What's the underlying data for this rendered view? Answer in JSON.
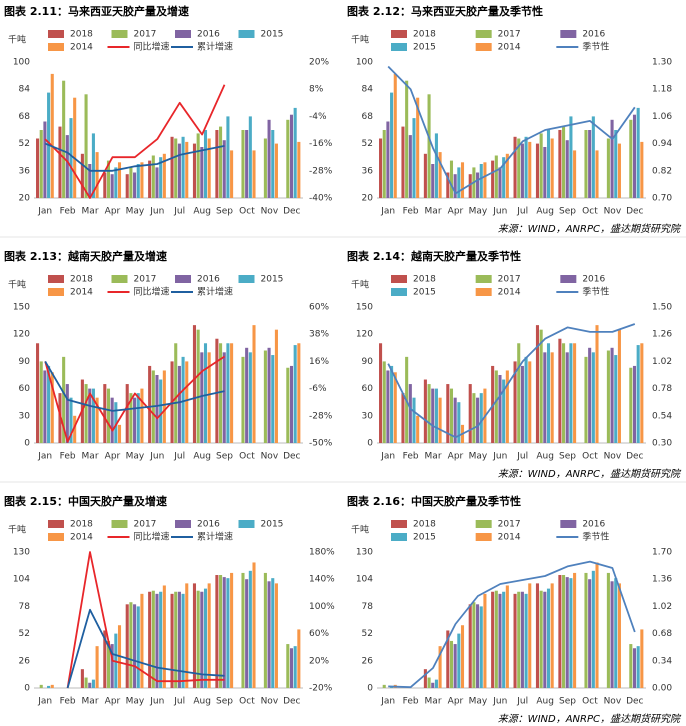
{
  "chart_data": [
    {
      "type": "bar",
      "title": "图表 2.11：马来西亚天胶产量及增速",
      "y_label": "千吨",
      "grid": false,
      "categories": [
        "Jan",
        "Feb",
        "Mar",
        "Apr",
        "May",
        "Jun",
        "Jul",
        "Aug",
        "Sep",
        "Oct",
        "Nov",
        "Dec"
      ],
      "ylim": [
        20,
        100
      ],
      "yticks": [
        20,
        36,
        52,
        68,
        84,
        100
      ],
      "y2lim": [
        -40,
        20
      ],
      "y2ticks": [
        {
          "value": -40,
          "label": "-40%"
        },
        {
          "value": -28,
          "label": "-28%"
        },
        {
          "value": -16,
          "label": "-16%"
        },
        {
          "value": -4,
          "label": "-4%"
        },
        {
          "value": 8,
          "label": "8%"
        },
        {
          "value": 20,
          "label": "20%"
        }
      ],
      "series": [
        {
          "name": "2018",
          "color": "#c0504d",
          "values": [
            55,
            62,
            46,
            35,
            34,
            42,
            56,
            52,
            60,
            null,
            null,
            null
          ]
        },
        {
          "name": "2017",
          "color": "#9bbb59",
          "values": [
            60,
            89,
            81,
            42,
            38,
            45,
            55,
            58,
            62,
            60,
            55,
            66
          ]
        },
        {
          "name": "2016",
          "color": "#8064a2",
          "values": [
            65,
            57,
            40,
            34,
            35,
            38,
            52,
            50,
            54,
            60,
            66,
            69
          ]
        },
        {
          "name": "2015",
          "color": "#4bacc6",
          "values": [
            82,
            67,
            58,
            38,
            40,
            44,
            56,
            60,
            68,
            68,
            60,
            73
          ]
        },
        {
          "name": "2014",
          "color": "#f79646",
          "values": [
            93,
            79,
            47,
            41,
            41,
            46,
            53,
            55,
            48,
            48,
            52,
            53
          ]
        },
        {
          "name": "同比增速",
          "color": "#e8262a",
          "type": "line",
          "axis": "y2",
          "values": [
            -14,
            -24,
            -40,
            -22,
            -22,
            -14,
            2,
            -12,
            10,
            null,
            null,
            null
          ]
        },
        {
          "name": "累计增速",
          "color": "#1f5fa0",
          "type": "line",
          "axis": "y2",
          "values": [
            -16,
            -20,
            -28,
            -28,
            -26,
            -25,
            -21,
            -19,
            -17,
            null,
            null,
            null
          ]
        }
      ]
    },
    {
      "type": "bar",
      "title": "图表 2.12：马来西亚天胶产量及季节性",
      "y_label": "千吨",
      "grid": false,
      "categories": [
        "Jan",
        "Feb",
        "Mar",
        "Apr",
        "May",
        "Jun",
        "Jul",
        "Aug",
        "Sep",
        "Oct",
        "Nov",
        "Dec"
      ],
      "ylim": [
        20,
        100
      ],
      "yticks": [
        20,
        36,
        52,
        68,
        84,
        100
      ],
      "y2lim": [
        0.7,
        1.3
      ],
      "y2ticks": [
        {
          "value": 0.7,
          "label": "0.70"
        },
        {
          "value": 0.82,
          "label": "0.82"
        },
        {
          "value": 0.94,
          "label": "0.94"
        },
        {
          "value": 1.06,
          "label": "1.06"
        },
        {
          "value": 1.18,
          "label": "1.18"
        },
        {
          "value": 1.3,
          "label": "1.30"
        }
      ],
      "series": [
        {
          "name": "2018",
          "color": "#c0504d",
          "values": [
            55,
            62,
            46,
            35,
            34,
            42,
            56,
            52,
            60,
            null,
            null,
            null
          ]
        },
        {
          "name": "2017",
          "color": "#9bbb59",
          "values": [
            60,
            89,
            81,
            42,
            38,
            45,
            55,
            58,
            62,
            60,
            55,
            66
          ]
        },
        {
          "name": "2016",
          "color": "#8064a2",
          "values": [
            65,
            57,
            40,
            34,
            35,
            38,
            52,
            50,
            54,
            60,
            66,
            69
          ]
        },
        {
          "name": "2015",
          "color": "#4bacc6",
          "values": [
            82,
            67,
            58,
            38,
            40,
            44,
            56,
            60,
            68,
            68,
            60,
            73
          ]
        },
        {
          "name": "2014",
          "color": "#f79646",
          "values": [
            93,
            79,
            47,
            41,
            41,
            46,
            53,
            55,
            48,
            48,
            52,
            53
          ]
        },
        {
          "name": "季节性",
          "color": "#4f81bd",
          "type": "line",
          "axis": "y2",
          "values": [
            1.28,
            1.18,
            0.92,
            0.72,
            0.78,
            0.83,
            0.95,
            1.0,
            1.02,
            1.04,
            0.96,
            1.1
          ]
        }
      ]
    },
    {
      "type": "bar",
      "title": "图表 2.13：越南天胶产量及增速",
      "y_label": "千吨",
      "grid": false,
      "categories": [
        "Jan",
        "Feb",
        "Mar",
        "Apr",
        "May",
        "Jun",
        "Jul",
        "Aug",
        "Sep",
        "Oct",
        "Nov",
        "Dec"
      ],
      "ylim": [
        0,
        150
      ],
      "yticks": [
        0,
        30,
        60,
        90,
        120,
        150
      ],
      "y2lim": [
        -50,
        60
      ],
      "y2ticks": [
        {
          "value": -50,
          "label": "-50%"
        },
        {
          "value": -28,
          "label": "-28%"
        },
        {
          "value": -6,
          "label": "-6%"
        },
        {
          "value": 16,
          "label": "16%"
        },
        {
          "value": 38,
          "label": "38%"
        },
        {
          "value": 60,
          "label": "60%"
        }
      ],
      "series": [
        {
          "name": "2018",
          "color": "#c0504d",
          "values": [
            110,
            55,
            70,
            65,
            65,
            85,
            90,
            130,
            115,
            null,
            null,
            null
          ]
        },
        {
          "name": "2017",
          "color": "#9bbb59",
          "values": [
            90,
            95,
            65,
            60,
            55,
            80,
            110,
            125,
            110,
            95,
            102,
            83
          ]
        },
        {
          "name": "2016",
          "color": "#8064a2",
          "values": [
            80,
            65,
            60,
            50,
            50,
            75,
            85,
            100,
            100,
            105,
            105,
            85
          ]
        },
        {
          "name": "2015",
          "color": "#4bacc6",
          "values": [
            85,
            50,
            60,
            45,
            55,
            70,
            95,
            110,
            110,
            100,
            97,
            108
          ]
        },
        {
          "name": "2014",
          "color": "#f79646",
          "values": [
            78,
            30,
            50,
            20,
            60,
            80,
            90,
            100,
            110,
            130,
            125,
            110
          ]
        },
        {
          "name": "同比增速",
          "color": "#e8262a",
          "type": "line",
          "axis": "y2",
          "values": [
            16,
            -49,
            -10,
            -40,
            -10,
            -30,
            -10,
            8,
            20,
            null,
            null,
            null
          ]
        },
        {
          "name": "累计增速",
          "color": "#1f5fa0",
          "type": "line",
          "axis": "y2",
          "values": [
            16,
            -15,
            -20,
            -24,
            -22,
            -20,
            -17,
            -12,
            -8,
            null,
            null,
            null
          ]
        }
      ]
    },
    {
      "type": "bar",
      "title": "图表 2.14：越南天胶产量及季节性",
      "y_label": "千吨",
      "grid": false,
      "categories": [
        "Jan",
        "Feb",
        "Mar",
        "Apr",
        "May",
        "Jun",
        "Jul",
        "Aug",
        "Sep",
        "Oct",
        "Nov",
        "Dec"
      ],
      "ylim": [
        0,
        150
      ],
      "yticks": [
        0,
        30,
        60,
        90,
        120,
        150
      ],
      "y2lim": [
        0.3,
        1.5
      ],
      "y2ticks": [
        {
          "value": 0.3,
          "label": "0.30"
        },
        {
          "value": 0.54,
          "label": "0.54"
        },
        {
          "value": 0.78,
          "label": "0.78"
        },
        {
          "value": 1.02,
          "label": "1.02"
        },
        {
          "value": 1.26,
          "label": "1.26"
        },
        {
          "value": 1.5,
          "label": "1.50"
        }
      ],
      "series": [
        {
          "name": "2018",
          "color": "#c0504d",
          "values": [
            110,
            55,
            70,
            65,
            65,
            85,
            90,
            130,
            115,
            null,
            null,
            null
          ]
        },
        {
          "name": "2017",
          "color": "#9bbb59",
          "values": [
            90,
            95,
            65,
            60,
            55,
            80,
            110,
            125,
            110,
            95,
            102,
            83
          ]
        },
        {
          "name": "2016",
          "color": "#8064a2",
          "values": [
            80,
            65,
            60,
            50,
            50,
            75,
            85,
            100,
            100,
            105,
            105,
            85
          ]
        },
        {
          "name": "2015",
          "color": "#4bacc6",
          "values": [
            85,
            50,
            60,
            45,
            55,
            70,
            95,
            110,
            110,
            100,
            97,
            108
          ]
        },
        {
          "name": "2014",
          "color": "#f79646",
          "values": [
            78,
            30,
            50,
            20,
            60,
            80,
            90,
            100,
            110,
            130,
            125,
            110
          ]
        },
        {
          "name": "季节性",
          "color": "#4f81bd",
          "type": "line",
          "axis": "y2",
          "values": [
            1.0,
            0.6,
            0.45,
            0.35,
            0.45,
            0.72,
            1.02,
            1.22,
            1.32,
            1.28,
            1.28,
            1.35
          ]
        }
      ]
    },
    {
      "type": "bar",
      "title": "图表 2.15：中国天胶产量及增速",
      "y_label": "千吨",
      "grid": false,
      "categories": [
        "Jan",
        "Feb",
        "Mar",
        "Apr",
        "May",
        "Jun",
        "Jul",
        "Aug",
        "Sep",
        "Oct",
        "Nov",
        "Dec"
      ],
      "ylim": [
        0,
        130
      ],
      "yticks": [
        0,
        26,
        52,
        78,
        104,
        130
      ],
      "y2lim": [
        -20,
        180
      ],
      "y2ticks": [
        {
          "value": -20,
          "label": "-20%"
        },
        {
          "value": 20,
          "label": "20%"
        },
        {
          "value": 60,
          "label": "60%"
        },
        {
          "value": 100,
          "label": "100%"
        },
        {
          "value": 140,
          "label": "140%"
        },
        {
          "value": 180,
          "label": "180%"
        }
      ],
      "series": [
        {
          "name": "2018",
          "color": "#c0504d",
          "values": [
            0,
            0,
            18,
            55,
            80,
            92,
            90,
            100,
            108,
            null,
            null,
            null
          ]
        },
        {
          "name": "2017",
          "color": "#9bbb59",
          "values": [
            3,
            0,
            10,
            45,
            82,
            93,
            92,
            93,
            108,
            110,
            110,
            42
          ]
        },
        {
          "name": "2016",
          "color": "#8064a2",
          "values": [
            0,
            0,
            5,
            42,
            80,
            90,
            92,
            92,
            106,
            104,
            102,
            38
          ]
        },
        {
          "name": "2015",
          "color": "#4bacc6",
          "values": [
            2,
            0,
            8,
            52,
            78,
            92,
            90,
            95,
            105,
            112,
            105,
            40
          ]
        },
        {
          "name": "2014",
          "color": "#f79646",
          "values": [
            3,
            0,
            40,
            60,
            90,
            98,
            100,
            100,
            110,
            120,
            100,
            56
          ]
        },
        {
          "name": "同比增速",
          "color": "#e8262a",
          "type": "line",
          "axis": "y2",
          "values": [
            null,
            -20,
            180,
            20,
            12,
            -10,
            -10,
            -8,
            -8,
            null,
            null,
            null
          ]
        },
        {
          "name": "累计增速",
          "color": "#1f5fa0",
          "type": "line",
          "axis": "y2",
          "values": [
            null,
            -20,
            95,
            30,
            20,
            10,
            5,
            0,
            -2,
            null,
            null,
            null
          ]
        }
      ]
    },
    {
      "type": "bar",
      "title": "图表 2.16：中国天胶产量及季节性",
      "y_label": "千吨",
      "grid": false,
      "categories": [
        "Jan",
        "Feb",
        "Mar",
        "Apr",
        "May",
        "Jun",
        "Jul",
        "Aug",
        "Sep",
        "Oct",
        "Nov",
        "Dec"
      ],
      "ylim": [
        0,
        130
      ],
      "yticks": [
        0,
        26,
        52,
        78,
        104,
        130
      ],
      "y2lim": [
        0,
        1.7
      ],
      "y2ticks": [
        {
          "value": 0,
          "label": "0.00"
        },
        {
          "value": 0.34,
          "label": "0.34"
        },
        {
          "value": 0.68,
          "label": "0.68"
        },
        {
          "value": 1.02,
          "label": "1.02"
        },
        {
          "value": 1.36,
          "label": "1.36"
        },
        {
          "value": 1.7,
          "label": "1.70"
        }
      ],
      "series": [
        {
          "name": "2018",
          "color": "#c0504d",
          "values": [
            0,
            0,
            18,
            55,
            80,
            92,
            90,
            100,
            108,
            null,
            null,
            null
          ]
        },
        {
          "name": "2017",
          "color": "#9bbb59",
          "values": [
            3,
            0,
            10,
            45,
            82,
            93,
            92,
            93,
            108,
            110,
            110,
            42
          ]
        },
        {
          "name": "2016",
          "color": "#8064a2",
          "values": [
            0,
            0,
            5,
            42,
            80,
            90,
            92,
            92,
            106,
            104,
            102,
            38
          ]
        },
        {
          "name": "2015",
          "color": "#4bacc6",
          "values": [
            2,
            0,
            8,
            52,
            78,
            92,
            90,
            95,
            105,
            112,
            105,
            40
          ]
        },
        {
          "name": "2014",
          "color": "#f79646",
          "values": [
            3,
            0,
            40,
            60,
            90,
            98,
            100,
            100,
            110,
            120,
            100,
            56
          ]
        },
        {
          "name": "季节性",
          "color": "#4f81bd",
          "type": "line",
          "axis": "y2",
          "values": [
            0.02,
            0.01,
            0.25,
            0.8,
            1.15,
            1.3,
            1.35,
            1.4,
            1.52,
            1.58,
            1.5,
            0.7
          ]
        }
      ]
    }
  ],
  "sources": [
    "来源：WIND，ANRPC，盛达期货研究院",
    "来源：WIND，ANRPC，盛达期货研究院",
    "来源：WIND，ANRPC，盛达期货研究院"
  ]
}
